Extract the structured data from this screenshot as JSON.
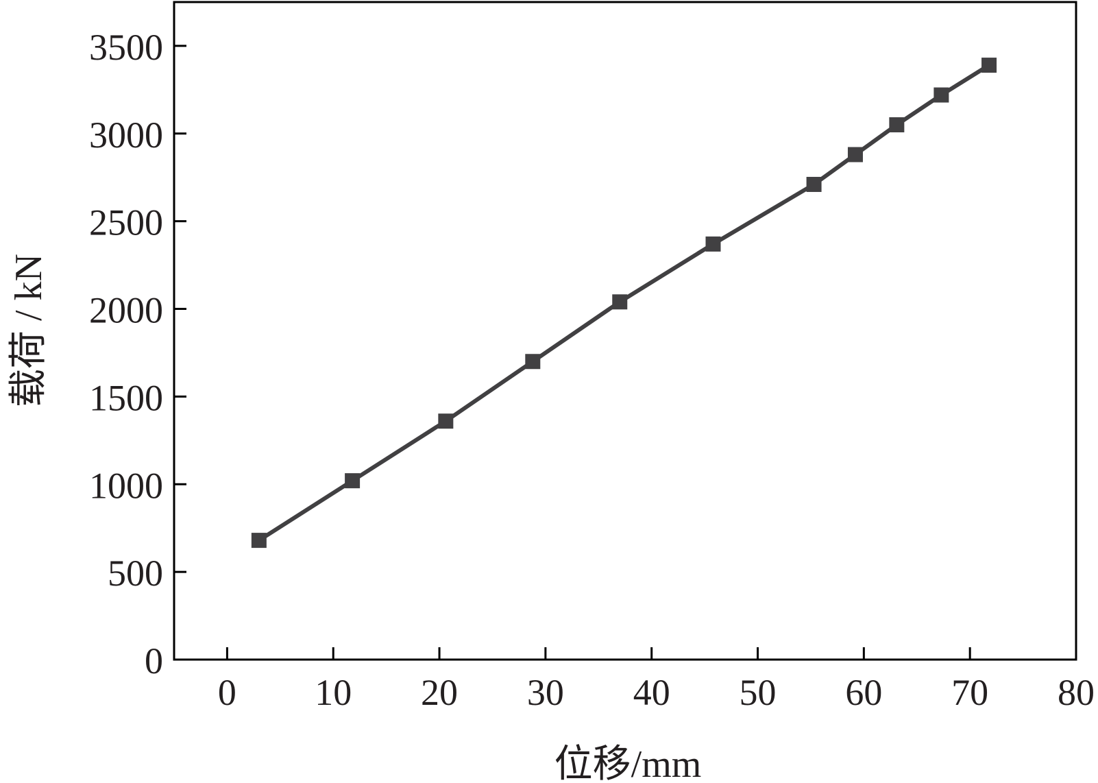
{
  "chart_data": {
    "type": "line",
    "title": "",
    "xlabel": "位移/mm",
    "ylabel": "载荷 / kN",
    "xlim": [
      -5,
      80
    ],
    "ylim": [
      0,
      3750
    ],
    "xticks": [
      0,
      10,
      20,
      30,
      40,
      50,
      60,
      70,
      80
    ],
    "yticks": [
      0,
      500,
      1000,
      1500,
      2000,
      2500,
      3000,
      3500
    ],
    "xtick_labels": [
      "0",
      "10",
      "20",
      "30",
      "40",
      "50",
      "60",
      "70",
      "80"
    ],
    "ytick_labels": [
      "0",
      "500",
      "1000",
      "1500",
      "2000",
      "2500",
      "3000",
      "3500"
    ],
    "grid": false,
    "legend": "none",
    "series": [
      {
        "marker": "square",
        "color": "#414042",
        "x": [
          3.0,
          11.8,
          20.6,
          28.8,
          37.0,
          45.8,
          55.3,
          59.2,
          63.1,
          67.3,
          71.8
        ],
        "y": [
          680,
          1020,
          1360,
          1700,
          2040,
          2370,
          2710,
          2880,
          3050,
          3220,
          3390
        ]
      }
    ]
  }
}
